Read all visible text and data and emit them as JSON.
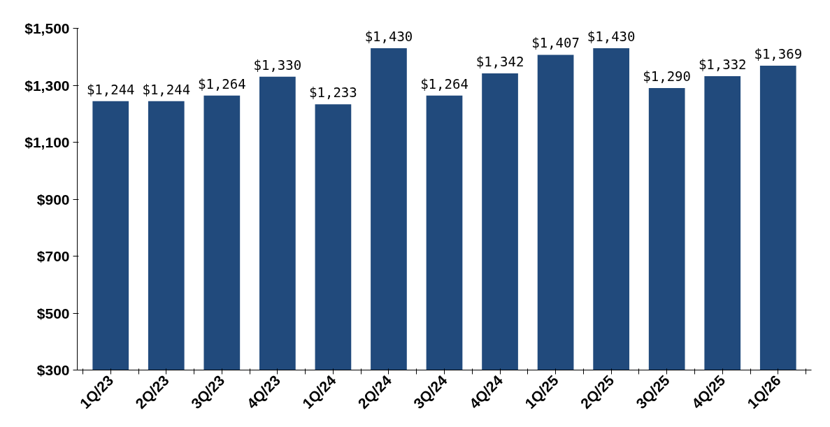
{
  "chart_data": {
    "type": "bar",
    "categories": [
      "1Q/23",
      "2Q/23",
      "3Q/23",
      "4Q/23",
      "1Q/24",
      "2Q/24",
      "3Q/24",
      "4Q/24",
      "1Q/25",
      "2Q/25",
      "3Q/25",
      "4Q/25",
      "1Q/26"
    ],
    "values": [
      1244,
      1244,
      1264,
      1330,
      1233,
      1430,
      1264,
      1342,
      1407,
      1430,
      1290,
      1332,
      1369
    ],
    "value_labels": [
      "$1,244",
      "$1,244",
      "$1,264",
      "$1,330",
      "$1,233",
      "$1,430",
      "$1,264",
      "$1,342",
      "$1,407",
      "$1,430",
      "$1,290",
      "$1,332",
      "$1,369"
    ],
    "color": "#214a7c",
    "ylim": [
      300,
      1500
    ],
    "yticks": [
      {
        "value": 300,
        "label": "$300"
      },
      {
        "value": 500,
        "label": "$500"
      },
      {
        "value": 700,
        "label": "$700"
      },
      {
        "value": 900,
        "label": "$900"
      },
      {
        "value": 1100,
        "label": "$1,100"
      },
      {
        "value": 1300,
        "label": "$1,300"
      },
      {
        "value": 1500,
        "label": "$1,500"
      }
    ],
    "grid": false
  }
}
